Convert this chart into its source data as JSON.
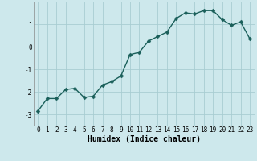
{
  "x": [
    0,
    1,
    2,
    3,
    4,
    5,
    6,
    7,
    8,
    9,
    10,
    11,
    12,
    13,
    14,
    15,
    16,
    17,
    18,
    19,
    20,
    21,
    22,
    23
  ],
  "y": [
    -2.85,
    -2.3,
    -2.3,
    -1.9,
    -1.85,
    -2.25,
    -2.2,
    -1.7,
    -1.55,
    -1.3,
    -0.35,
    -0.25,
    0.25,
    0.45,
    0.65,
    1.25,
    1.5,
    1.45,
    1.6,
    1.6,
    1.2,
    0.95,
    1.1,
    0.35
  ],
  "xlabel": "Humidex (Indice chaleur)",
  "ylim": [
    -3.5,
    2.0
  ],
  "xlim": [
    -0.5,
    23.5
  ],
  "bg_color": "#cde8ec",
  "grid_color": "#a8cdd2",
  "line_color": "#1a5f5a",
  "marker_size": 2.5,
  "line_width": 1.0,
  "yticks": [
    -3,
    -2,
    -1,
    0,
    1
  ],
  "xticks": [
    0,
    1,
    2,
    3,
    4,
    5,
    6,
    7,
    8,
    9,
    10,
    11,
    12,
    13,
    14,
    15,
    16,
    17,
    18,
    19,
    20,
    21,
    22,
    23
  ],
  "tick_fontsize": 5.5,
  "xlabel_fontsize": 7.0
}
